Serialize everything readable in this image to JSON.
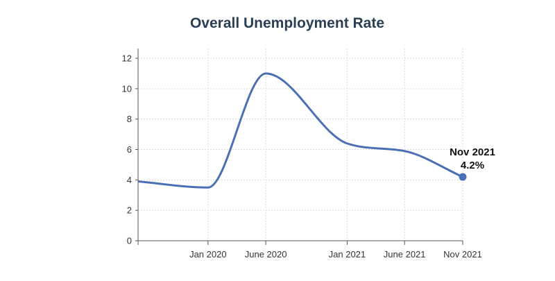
{
  "chart_data": {
    "type": "line",
    "title": "Overall Unemployment Rate",
    "xlabel": "",
    "ylabel": "",
    "x_ticks": [
      "Jan 2020",
      "June 2020",
      "Jan 2021",
      "June 2021",
      "Nov 2021"
    ],
    "ylim": [
      0,
      12
    ],
    "y_ticks": [
      0,
      2,
      4,
      6,
      8,
      10,
      12
    ],
    "grid": true,
    "legend": "none",
    "series": [
      {
        "color": "#4a6fb5",
        "points": [
          {
            "x": "2019-07",
            "y": 3.9
          },
          {
            "x": "2020-01",
            "y": 3.5
          },
          {
            "x": "2020-06",
            "y": 11.0
          },
          {
            "x": "2021-01",
            "y": 6.4
          },
          {
            "x": "2021-06",
            "y": 5.9
          },
          {
            "x": "2021-11",
            "y": 4.2
          }
        ]
      }
    ],
    "annotation": {
      "point_x": "2021-11",
      "line1": "Nov 2021",
      "line2": "4.2%"
    }
  }
}
